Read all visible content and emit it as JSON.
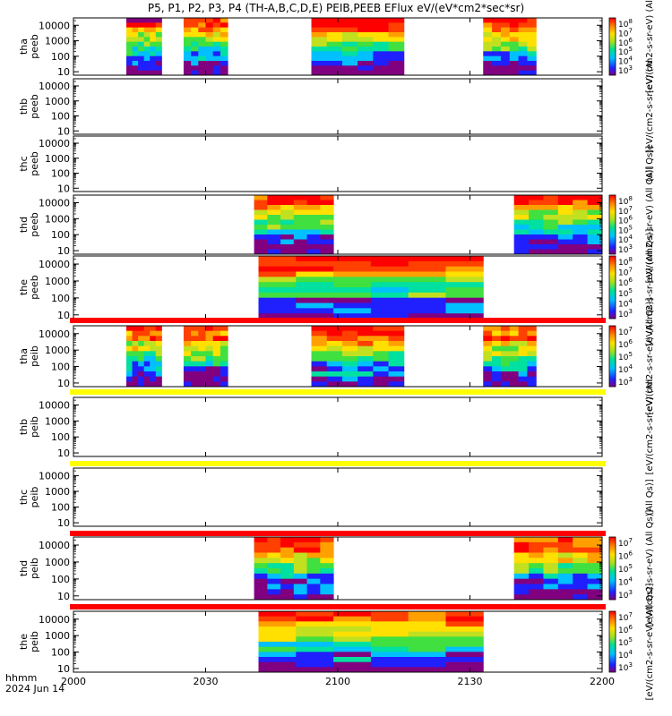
{
  "title": "P5, P1, P2, P3, P4 (TH-A,B,C,D,E) PEIB,PEEB EFlux eV/(eV*cm2*sec*sr)",
  "title_superscript": "2",
  "colors": {
    "spectro": [
      "#800080",
      "#2020ff",
      "#00c0ff",
      "#00e0a0",
      "#40e040",
      "#c0e020",
      "#ffe000",
      "#ffa000",
      "#ff4000",
      "#ff0000"
    ],
    "bar_red": "#ff0000",
    "bar_yellow": "#ffff00"
  },
  "chart_data": [
    {
      "type": "heatmap",
      "name": "tha-peeb",
      "ylabel": [
        "tha",
        "peeb"
      ],
      "yscale": "log",
      "ylim": [
        6,
        30000
      ],
      "yticks": [
        "10000",
        "1000",
        "100",
        "10"
      ],
      "blocks": [
        [
          "20:12",
          "20:20"
        ],
        [
          "20:25",
          "20:35"
        ],
        [
          "20:54",
          "21:15"
        ],
        [
          "21:33",
          "21:45"
        ]
      ],
      "colorbar": {
        "ticks": [
          "10^8",
          "10^7",
          "10^6",
          "10^5",
          "10^4",
          "10^3"
        ],
        "label": "[eV/(cm2-s-sr-eV) (Al"
      }
    },
    {
      "type": "heatmap",
      "name": "thb-peeb",
      "ylabel": [
        "thb",
        "peeb"
      ],
      "yscale": "log",
      "ylim": [
        6,
        30000
      ],
      "yticks": [
        "10000",
        "1000",
        "100",
        "10"
      ],
      "blocks": [],
      "colorbar": {
        "ticks": [],
        "label": "[eV/(cm2-s-sr-eV) (Al"
      }
    },
    {
      "type": "heatmap",
      "name": "thc-peeb",
      "ylabel": [
        "thc",
        "peeb"
      ],
      "yscale": "log",
      "ylim": [
        6,
        30000
      ],
      "yticks": [
        "10000",
        "1000",
        "100",
        "10"
      ],
      "blocks": [],
      "colorbar": {
        "ticks": [],
        "label": "(All Qs)]"
      }
    },
    {
      "type": "heatmap",
      "name": "thd-peeb",
      "ylabel": [
        "thd",
        "peeb"
      ],
      "yscale": "log",
      "ylim": [
        6,
        30000
      ],
      "yticks": [
        "10000",
        "1000",
        "100",
        "10"
      ],
      "blocks": [
        [
          "20:41",
          "20:59"
        ],
        [
          "21:40",
          "22:00"
        ]
      ],
      "colorbar": {
        "ticks": [
          "10^8",
          "10^7",
          "10^6",
          "10^5",
          "10^4",
          "10^3"
        ],
        "label": "[eV/(cm2-s-sr-eV) (All Qs)]"
      }
    },
    {
      "type": "heatmap",
      "name": "the-peeb",
      "ylabel": [
        "the",
        "peeb"
      ],
      "yscale": "log",
      "ylim": [
        6,
        30000
      ],
      "yticks": [
        "10000",
        "1000",
        "100",
        "10"
      ],
      "blocks": [
        [
          "20:42",
          "21:33"
        ]
      ],
      "colorbar": {
        "ticks": [
          "10^8",
          "10^7",
          "10^6",
          "10^5",
          "10^4",
          "10^3"
        ],
        "label": "[eV/(cm2-s-sr-eV) (All Qs)]"
      }
    },
    {
      "type": "heatmap",
      "name": "tha-peib",
      "ylabel": [
        "tha",
        "peib"
      ],
      "yscale": "log",
      "ylim": [
        6,
        30000
      ],
      "yticks": [
        "10000",
        "1000",
        "100",
        "10"
      ],
      "blocks": [
        [
          "20:12",
          "20:20"
        ],
        [
          "20:25",
          "20:35"
        ],
        [
          "20:54",
          "21:15"
        ],
        [
          "21:33",
          "21:45"
        ]
      ],
      "colorbar": {
        "ticks": [
          "10^7",
          "10^6",
          "10^5",
          "10^4",
          "10^3"
        ],
        "label": "[eV/(cm2-s-sr-eV) (All Qs)]"
      }
    },
    {
      "type": "heatmap",
      "name": "thb-peib",
      "ylabel": [
        "thb",
        "peib"
      ],
      "yscale": "log",
      "ylim": [
        6,
        30000
      ],
      "yticks": [
        "10000",
        "1000",
        "100",
        "10"
      ],
      "blocks": [],
      "colorbar": {
        "ticks": [],
        "label": "[eV/(cm2-s-sr-eV) (All"
      }
    },
    {
      "type": "heatmap",
      "name": "thc-peib",
      "ylabel": [
        "thc",
        "peib"
      ],
      "yscale": "log",
      "ylim": [
        6,
        30000
      ],
      "yticks": [
        "10000",
        "1000",
        "100",
        "10"
      ],
      "blocks": [],
      "colorbar": {
        "ticks": [],
        "label": "(All Qs)]"
      }
    },
    {
      "type": "heatmap",
      "name": "thd-peib",
      "ylabel": [
        "thd",
        "peib"
      ],
      "yscale": "log",
      "ylim": [
        6,
        30000
      ],
      "yticks": [
        "10000",
        "1000",
        "100",
        "10"
      ],
      "blocks": [
        [
          "20:41",
          "20:59"
        ],
        [
          "21:40",
          "22:00"
        ]
      ],
      "colorbar": {
        "ticks": [
          "10^7",
          "10^6",
          "10^5",
          "10^4",
          "10^3"
        ],
        "label": "[eV/(cm2-s-sr-eV) (All Qs)]"
      }
    },
    {
      "type": "heatmap",
      "name": "the-peib",
      "ylabel": [
        "the",
        "peib"
      ],
      "yscale": "log",
      "ylim": [
        6,
        30000
      ],
      "yticks": [
        "10000",
        "1000",
        "100",
        "10"
      ],
      "blocks": [
        [
          "20:42",
          "21:33"
        ]
      ],
      "colorbar": {
        "ticks": [
          "10^7",
          "10^6",
          "10^5",
          "10^4",
          "10^3"
        ],
        "label": "[eV/(cm2-s-sr-eV) (All Qs)]"
      }
    }
  ],
  "xaxis": {
    "range": [
      "20:00",
      "22:00"
    ],
    "ticks": [
      {
        "t": "20:00",
        "label": "2000"
      },
      {
        "t": "20:30",
        "label": "2030"
      },
      {
        "t": "21:00",
        "label": "2100"
      },
      {
        "t": "21:30",
        "label": "2130"
      },
      {
        "t": "22:00",
        "label": "2200"
      }
    ],
    "unit_label": "hhmm",
    "date_label": "2024 Jun 14"
  }
}
